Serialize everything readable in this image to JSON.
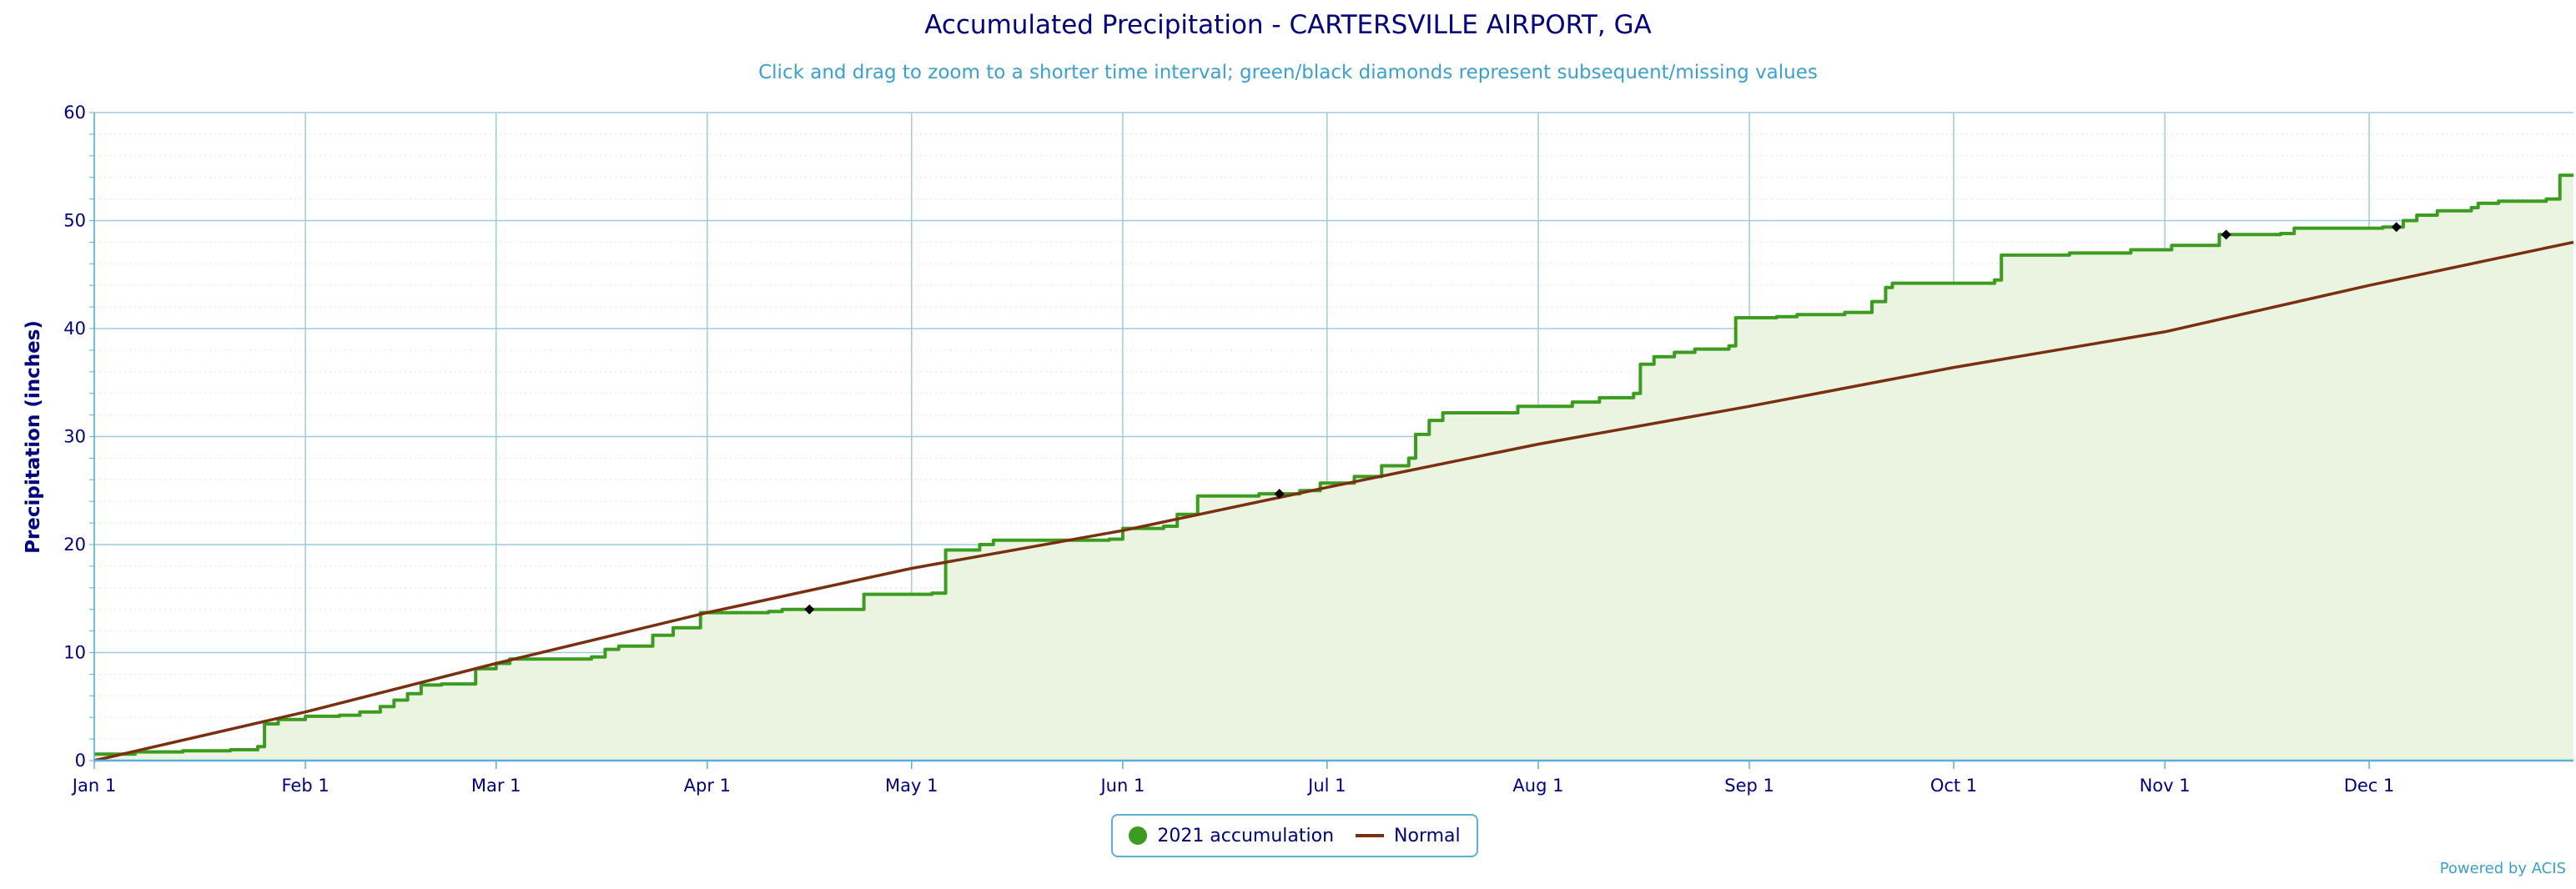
{
  "chart_data": {
    "type": "line",
    "title": "Accumulated Precipitation - CARTERSVILLE AIRPORT, GA",
    "subtitle": "Click and drag to zoom to a shorter time interval; green/black diamonds represent subsequent/missing values",
    "ylabel": "Precipitation (inches)",
    "xlabel": "",
    "ylim": [
      0,
      60
    ],
    "xlim": [
      1,
      365
    ],
    "x_unit": "day of year 2021",
    "y_ticks": [
      "0",
      "10",
      "20",
      "30",
      "40",
      "50",
      "60"
    ],
    "x_ticks": [
      {
        "label": "Jan 1",
        "day": 1
      },
      {
        "label": "Feb 1",
        "day": 32
      },
      {
        "label": "Mar 1",
        "day": 60
      },
      {
        "label": "Apr 1",
        "day": 91
      },
      {
        "label": "May 1",
        "day": 121
      },
      {
        "label": "Jun 1",
        "day": 152
      },
      {
        "label": "Jul 1",
        "day": 182
      },
      {
        "label": "Aug 1",
        "day": 213
      },
      {
        "label": "Sep 1",
        "day": 244
      },
      {
        "label": "Oct 1",
        "day": 274
      },
      {
        "label": "Nov 1",
        "day": 305
      },
      {
        "label": "Dec 1",
        "day": 335
      }
    ],
    "grid": true,
    "legend_position": "bottom-center",
    "series": [
      {
        "name": "2021 accumulation",
        "color": "#3b9c1f",
        "fill": "#eaf4e1",
        "step": true,
        "points": [
          [
            1,
            0.6
          ],
          [
            7,
            0.8
          ],
          [
            14,
            0.9
          ],
          [
            21,
            1.0
          ],
          [
            25,
            1.3
          ],
          [
            26,
            3.4
          ],
          [
            28,
            3.8
          ],
          [
            32,
            4.1
          ],
          [
            37,
            4.2
          ],
          [
            40,
            4.5
          ],
          [
            43,
            5.0
          ],
          [
            45,
            5.6
          ],
          [
            47,
            6.2
          ],
          [
            49,
            7.0
          ],
          [
            52,
            7.1
          ],
          [
            57,
            8.5
          ],
          [
            60,
            9.0
          ],
          [
            62,
            9.4
          ],
          [
            74,
            9.6
          ],
          [
            76,
            10.3
          ],
          [
            78,
            10.6
          ],
          [
            83,
            11.6
          ],
          [
            86,
            12.3
          ],
          [
            88,
            12.3
          ],
          [
            90,
            13.7
          ],
          [
            100,
            13.8
          ],
          [
            102,
            14.0
          ],
          [
            113,
            14.0
          ],
          [
            114,
            15.4
          ],
          [
            119,
            15.4
          ],
          [
            124,
            15.5
          ],
          [
            126,
            19.5
          ],
          [
            131,
            20.0
          ],
          [
            133,
            20.4
          ],
          [
            150,
            20.5
          ],
          [
            152,
            21.5
          ],
          [
            158,
            21.7
          ],
          [
            160,
            22.8
          ],
          [
            163,
            24.5
          ],
          [
            172,
            24.7
          ],
          [
            174,
            24.7
          ],
          [
            178,
            25.0
          ],
          [
            181,
            25.7
          ],
          [
            186,
            26.3
          ],
          [
            190,
            27.3
          ],
          [
            194,
            28.0
          ],
          [
            195,
            30.2
          ],
          [
            197,
            31.5
          ],
          [
            199,
            32.2
          ],
          [
            207,
            32.2
          ],
          [
            210,
            32.8
          ],
          [
            218,
            33.2
          ],
          [
            222,
            33.6
          ],
          [
            227,
            34.0
          ],
          [
            228,
            36.7
          ],
          [
            230,
            37.4
          ],
          [
            233,
            37.8
          ],
          [
            236,
            38.1
          ],
          [
            241,
            38.4
          ],
          [
            242,
            41.0
          ],
          [
            248,
            41.1
          ],
          [
            251,
            41.3
          ],
          [
            258,
            41.5
          ],
          [
            262,
            42.5
          ],
          [
            264,
            43.8
          ],
          [
            265,
            44.2
          ],
          [
            278,
            44.2
          ],
          [
            280,
            44.5
          ],
          [
            281,
            46.8
          ],
          [
            291,
            47.0
          ],
          [
            300,
            47.3
          ],
          [
            306,
            47.7
          ],
          [
            313,
            48.7
          ],
          [
            322,
            48.8
          ],
          [
            324,
            49.3
          ],
          [
            337,
            49.4
          ],
          [
            340,
            50.0
          ],
          [
            342,
            50.5
          ],
          [
            345,
            50.9
          ],
          [
            350,
            51.2
          ],
          [
            351,
            51.6
          ],
          [
            354,
            51.8
          ],
          [
            361,
            52.0
          ],
          [
            363,
            54.2
          ],
          [
            365,
            54.2
          ]
        ]
      },
      {
        "name": "Normal",
        "color": "#7a3010",
        "step": false,
        "points": [
          [
            1,
            0.0
          ],
          [
            32,
            4.5
          ],
          [
            60,
            9.0
          ],
          [
            91,
            13.7
          ],
          [
            121,
            17.8
          ],
          [
            152,
            21.3
          ],
          [
            182,
            25.3
          ],
          [
            213,
            29.3
          ],
          [
            244,
            32.8
          ],
          [
            274,
            36.4
          ],
          [
            305,
            39.7
          ],
          [
            335,
            44.0
          ],
          [
            365,
            48.0
          ]
        ]
      }
    ],
    "markers": [
      {
        "type": "missing",
        "color": "#000000",
        "x": 106,
        "y": 14.0
      },
      {
        "type": "missing",
        "color": "#000000",
        "x": 175,
        "y": 24.7
      },
      {
        "type": "missing",
        "color": "#000000",
        "x": 314,
        "y": 48.7
      },
      {
        "type": "missing",
        "color": "#000000",
        "x": 339,
        "y": 49.4
      }
    ]
  },
  "legend": {
    "items": [
      {
        "label": "2021 accumulation"
      },
      {
        "label": "Normal"
      }
    ]
  },
  "credits": "Powered by ACIS"
}
